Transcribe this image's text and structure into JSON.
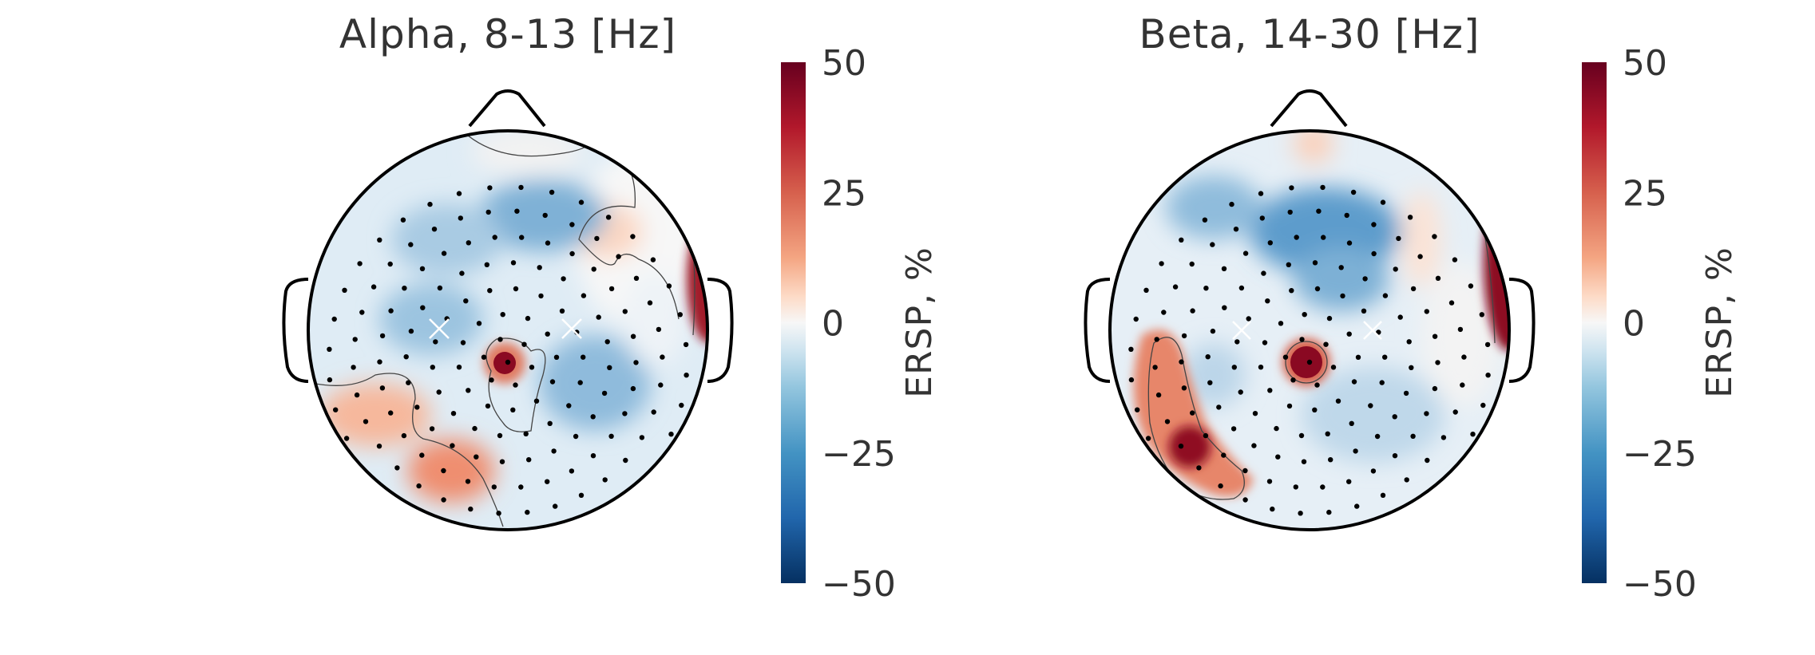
{
  "colors": {
    "negative_extreme": "#053061",
    "negative_mid": "#4393c3",
    "neutral": "#f7f7f7",
    "positive_mid": "#d6604d",
    "positive_extreme": "#67001f",
    "outline": "#000000",
    "text": "#333333"
  },
  "chart_data": [
    {
      "type": "heatmap",
      "subtype": "scalp-topography",
      "title": "Alpha, 8-13 [Hz]",
      "colorbar": {
        "label": "ERSP, %",
        "ticks": [
          50,
          25,
          0,
          -25,
          -50
        ],
        "tick_labels": [
          "50",
          "25",
          "0",
          "−25",
          "−50"
        ],
        "range": [
          -50,
          50
        ],
        "colormap": "RdBu_r"
      },
      "features": [
        {
          "region": "central-midline",
          "value": 50
        },
        {
          "region": "right-temporal-edge",
          "value": 45
        },
        {
          "region": "left-occipital",
          "value": 25
        },
        {
          "region": "left-posterior-temporal",
          "value": 20
        },
        {
          "region": "right-frontal",
          "value": 12
        },
        {
          "region": "frontal-center-right",
          "value": -25
        },
        {
          "region": "right-parietal",
          "value": -20
        }
      ]
    },
    {
      "type": "heatmap",
      "subtype": "scalp-topography",
      "title": "Beta, 14-30 [Hz]",
      "colorbar": {
        "label": "ERSP, %",
        "ticks": [
          50,
          25,
          0,
          -25,
          -50
        ],
        "tick_labels": [
          "50",
          "25",
          "0",
          "−25",
          "−50"
        ],
        "range": [
          -50,
          50
        ],
        "colormap": "RdBu_r"
      },
      "features": [
        {
          "region": "central-midline",
          "value": 50
        },
        {
          "region": "right-temporal-edge",
          "value": 50
        },
        {
          "region": "left-posterior-temporal",
          "value": 45
        },
        {
          "region": "left-temporal",
          "value": 25
        },
        {
          "region": "frontal-pole",
          "value": 15
        },
        {
          "region": "frontal-center",
          "value": -30
        },
        {
          "region": "left-frontal",
          "value": -20
        }
      ]
    }
  ]
}
